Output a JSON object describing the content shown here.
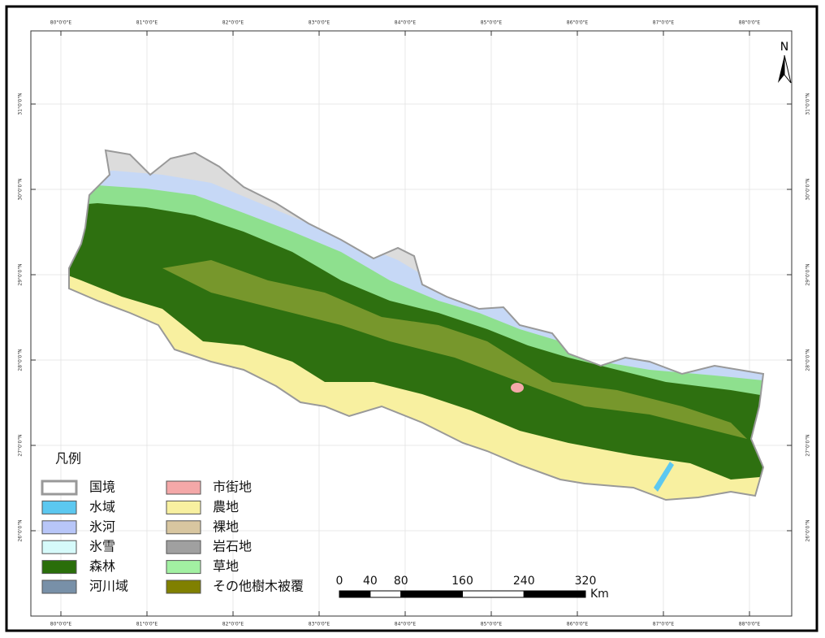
{
  "north": "N",
  "longitude_labels": [
    "80°0'0\"E",
    "81°0'0\"E",
    "82°0'0\"E",
    "83°0'0\"E",
    "84°0'0\"E",
    "85°0'0\"E",
    "86°0'0\"E",
    "87°0'0\"E",
    "88°0'0\"E"
  ],
  "latitude_labels": [
    "31°0'0\"N",
    "30°0'0\"N",
    "29°0'0\"N",
    "28°0'0\"N",
    "27°0'0\"N",
    "26°0'0\"N"
  ],
  "legend": {
    "title": "凡例",
    "items": [
      {
        "label": "国境",
        "color": "#ffffff"
      },
      {
        "label": "水域",
        "color": "#5cc8f0"
      },
      {
        "label": "氷河",
        "color": "#b8c6f8"
      },
      {
        "label": "氷雪",
        "color": "#d6fafa"
      },
      {
        "label": "森林",
        "color": "#2a6e0a"
      },
      {
        "label": "河川域",
        "color": "#7890a8"
      },
      {
        "label": "市街地",
        "color": "#f4a8a8"
      },
      {
        "label": "農地",
        "color": "#f8f0a0"
      },
      {
        "label": "裸地",
        "color": "#d8c6a0"
      },
      {
        "label": "岩石地",
        "color": "#a0a0a0"
      },
      {
        "label": "草地",
        "color": "#a2f0a2"
      },
      {
        "label": "その他樹木被覆",
        "color": "#808000"
      }
    ]
  },
  "scale_bar": {
    "ticks": [
      0,
      40,
      80,
      160,
      240,
      320
    ],
    "unit": "Km"
  }
}
